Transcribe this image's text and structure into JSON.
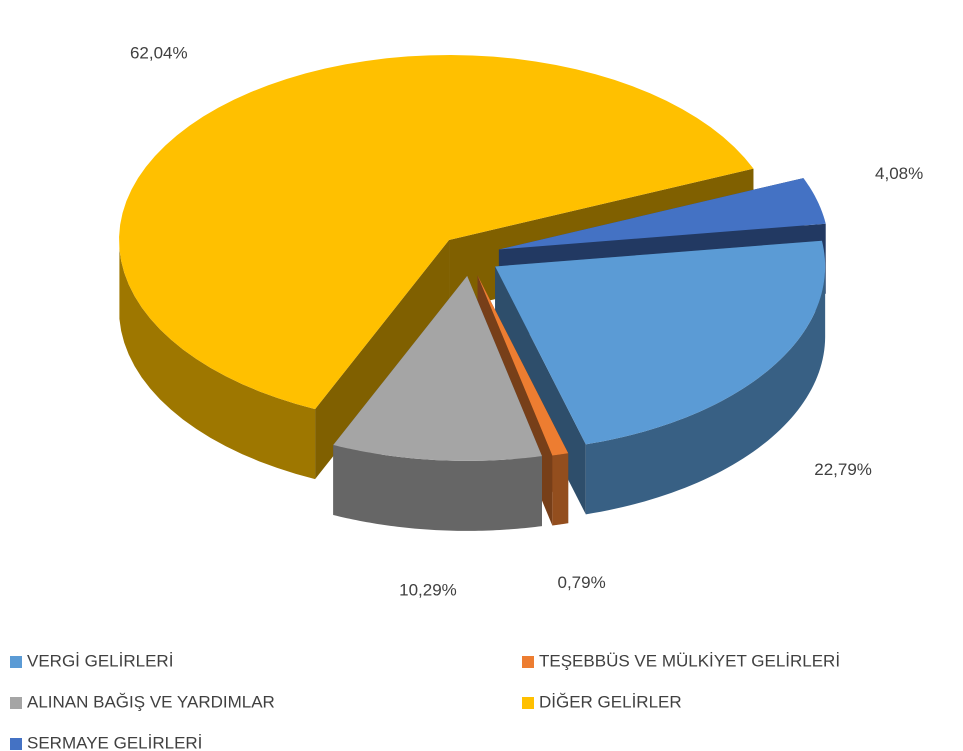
{
  "chart_data": {
    "type": "pie3d",
    "categories": [
      "VERGİ GELİRLERİ",
      "TEŞEBBÜS VE MÜLKİYET GELİRLERİ",
      "ALINAN BAĞIŞ VE YARDIMLAR",
      "DİĞER GELİRLER",
      "SERMAYE GELİRLERİ"
    ],
    "values": [
      22.79,
      0.79,
      10.29,
      62.04,
      4.08
    ],
    "value_labels": [
      "22,79%",
      "0,79%",
      "10,29%",
      "62,04%",
      "4,08%"
    ],
    "colors": [
      "#5b9bd5",
      "#ed7d31",
      "#a5a5a5",
      "#ffc000",
      "#4472c4"
    ],
    "legend": "bottom"
  }
}
